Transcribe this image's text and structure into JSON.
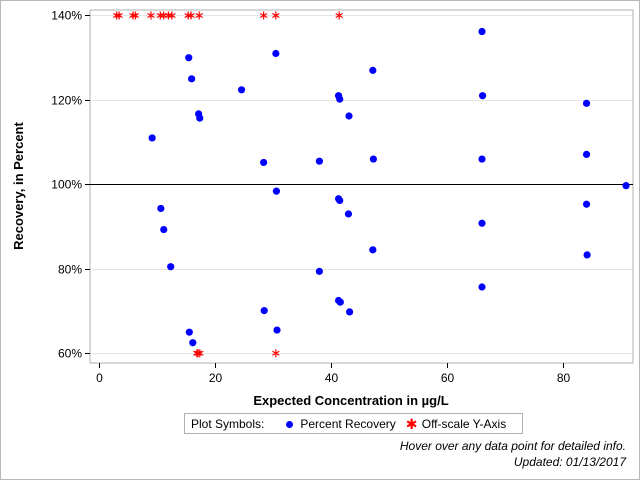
{
  "chart_data": {
    "type": "scatter",
    "xlabel": "Expected Concentration in µg/L",
    "ylabel": "Recovery, in Percent",
    "xlim": [
      -1.5,
      92
    ],
    "ylim": [
      57.7,
      141.3
    ],
    "x_ticks": [
      0,
      20,
      40,
      60,
      80
    ],
    "y_ticks": [
      60,
      80,
      100,
      120,
      140
    ],
    "y_tick_labels": [
      "60%",
      "80%",
      "100%",
      "120%",
      "140%"
    ],
    "reference_line_y": 100,
    "grid": "horizontal",
    "series": [
      {
        "name": "Percent Recovery",
        "color": "#0000ff",
        "marker": "circle",
        "points": [
          [
            9.2,
            111
          ],
          [
            10.7,
            94.3
          ],
          [
            11.2,
            89.3
          ],
          [
            12.4,
            80.5
          ],
          [
            15.5,
            130
          ],
          [
            15.6,
            65
          ],
          [
            16.0,
            125
          ],
          [
            16.2,
            62.5
          ],
          [
            17.2,
            116.7
          ],
          [
            17.4,
            115.7
          ],
          [
            24.6,
            122.4
          ],
          [
            28.4,
            105.2
          ],
          [
            28.5,
            70.1
          ],
          [
            30.5,
            131
          ],
          [
            30.6,
            98.4
          ],
          [
            30.7,
            65.5
          ],
          [
            38.0,
            105.5
          ],
          [
            38.0,
            79.4
          ],
          [
            41.3,
            121
          ],
          [
            41.5,
            120.2
          ],
          [
            41.3,
            96.6
          ],
          [
            41.5,
            96.2
          ],
          [
            41.3,
            72.5
          ],
          [
            41.6,
            72.1
          ],
          [
            43.1,
            116.2
          ],
          [
            43.0,
            93
          ],
          [
            43.2,
            69.8
          ],
          [
            47.2,
            127
          ],
          [
            47.3,
            106
          ],
          [
            47.2,
            84.5
          ],
          [
            66.0,
            136.2
          ],
          [
            66.1,
            121
          ],
          [
            66.0,
            106
          ],
          [
            66.0,
            90.8
          ],
          [
            66.0,
            75.7
          ],
          [
            84.0,
            119.2
          ],
          [
            84.0,
            107.1
          ],
          [
            84.0,
            95.3
          ],
          [
            84.1,
            83.3
          ],
          [
            90.8,
            99.7
          ]
        ]
      },
      {
        "name": "Off-scale Y-Axis",
        "color": "#ff0000",
        "marker": "star",
        "points": [
          [
            3.1,
            140
          ],
          [
            3.5,
            140
          ],
          [
            5.9,
            140
          ],
          [
            6.3,
            140
          ],
          [
            9.0,
            140
          ],
          [
            10.6,
            140
          ],
          [
            11.2,
            140
          ],
          [
            12.0,
            140
          ],
          [
            12.6,
            140
          ],
          [
            15.4,
            140
          ],
          [
            15.9,
            140
          ],
          [
            17.3,
            140
          ],
          [
            28.4,
            140
          ],
          [
            30.5,
            140
          ],
          [
            41.4,
            140
          ],
          [
            16.9,
            60
          ],
          [
            17.1,
            60
          ],
          [
            17.4,
            60
          ],
          [
            30.5,
            60
          ]
        ]
      }
    ],
    "legend": {
      "title": "Plot Symbols:",
      "position": "bottom-center"
    }
  },
  "footnotes": {
    "hover_note": "Hover over any data point for detailed info.",
    "updated": "Updated: 01/13/2017"
  }
}
